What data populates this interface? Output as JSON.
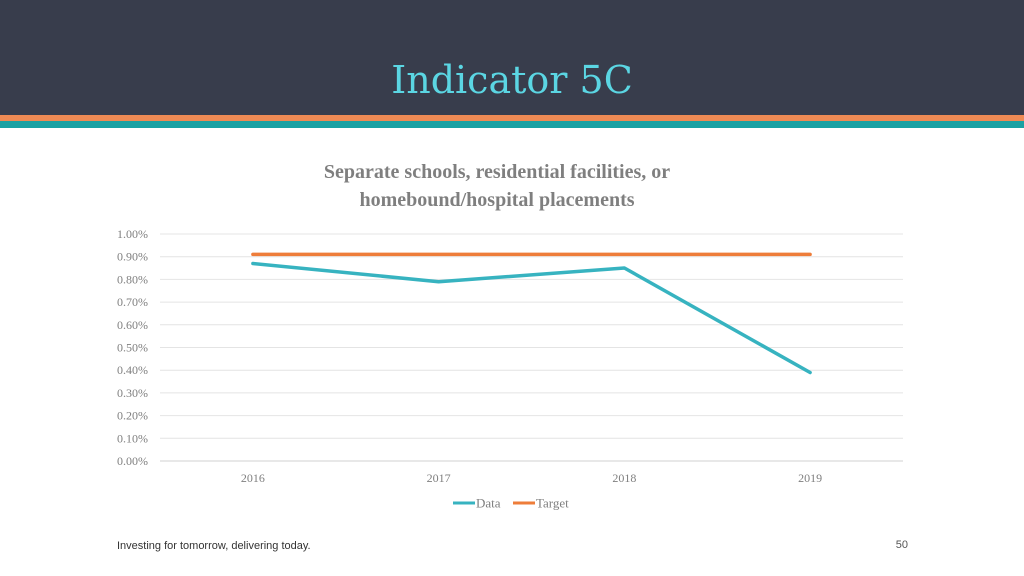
{
  "slide": {
    "title": "Indicator 5C",
    "footer": "Investing for tomorrow, delivering today.",
    "page_number": "50"
  },
  "colors": {
    "header_bg": "#383d4c",
    "title": "#5bd6e3",
    "stripe_orange": "#ee8a54",
    "stripe_teal": "#1aa1a3",
    "data_series": "#37b3c0",
    "target_series": "#ee7d3a"
  },
  "chart_data": {
    "type": "line",
    "title_lines": [
      "Separate schools, residential facilities, or",
      "homebound/hospital placements"
    ],
    "categories": [
      "2016",
      "2017",
      "2018",
      "2019"
    ],
    "ylim": [
      0,
      0.01
    ],
    "yticks": [
      "0.00%",
      "0.10%",
      "0.20%",
      "0.30%",
      "0.40%",
      "0.50%",
      "0.60%",
      "0.70%",
      "0.80%",
      "0.90%",
      "1.00%"
    ],
    "grid": true,
    "legend_position": "bottom",
    "series": [
      {
        "name": "Data",
        "values": [
          0.0087,
          0.0079,
          0.0085,
          0.0039
        ],
        "color": "#37b3c0"
      },
      {
        "name": "Target",
        "values": [
          0.0091,
          0.0091,
          0.0091,
          0.0091
        ],
        "color": "#ee7d3a"
      }
    ]
  }
}
